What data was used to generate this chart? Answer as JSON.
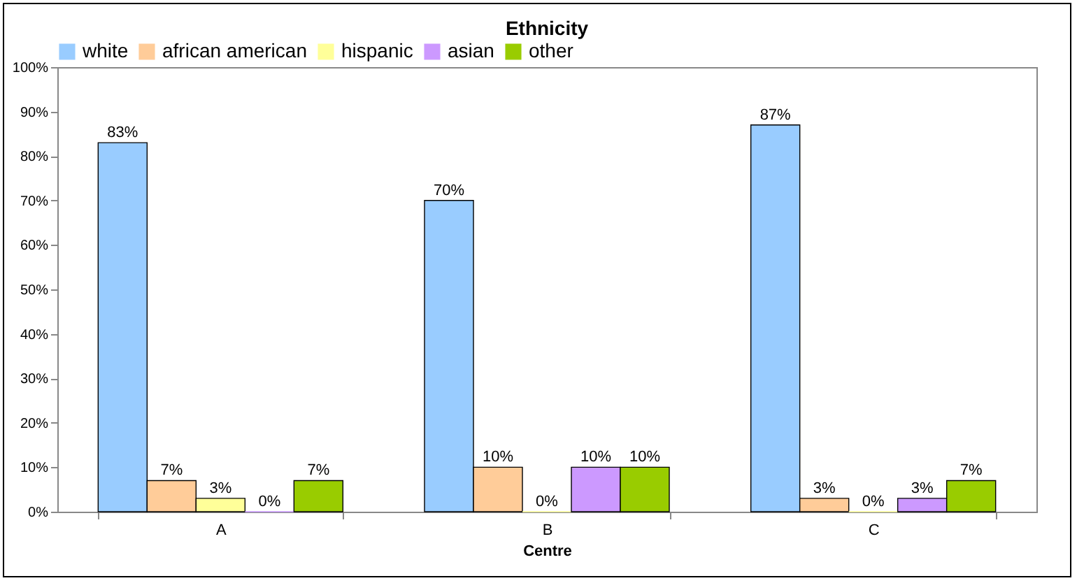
{
  "chart_data": {
    "type": "bar",
    "title": "Ethnicity",
    "xlabel": "Centre",
    "categories": [
      "A",
      "B",
      "C"
    ],
    "series": [
      {
        "name": "white",
        "color": "#99ccff",
        "values": [
          83,
          70,
          87
        ],
        "value_labels": [
          "83%",
          "70%",
          "87%"
        ]
      },
      {
        "name": "african american",
        "color": "#ffcc99",
        "values": [
          7,
          10,
          3
        ],
        "value_labels": [
          "7%",
          "10%",
          "3%"
        ]
      },
      {
        "name": "hispanic",
        "color": "#ffff99",
        "values": [
          3,
          0,
          0
        ],
        "value_labels": [
          "3%",
          "0%",
          "0%"
        ]
      },
      {
        "name": "asian",
        "color": "#cc99ff",
        "values": [
          0,
          10,
          3
        ],
        "value_labels": [
          "0%",
          "10%",
          "3%"
        ]
      },
      {
        "name": "other",
        "color": "#99cc00",
        "values": [
          7,
          10,
          7
        ],
        "value_labels": [
          "7%",
          "10%",
          "7%"
        ]
      }
    ],
    "ylim": [
      0,
      100
    ],
    "yticks": [
      {
        "value": 0,
        "label": "0%"
      },
      {
        "value": 10,
        "label": "10%"
      },
      {
        "value": 20,
        "label": "20%"
      },
      {
        "value": 30,
        "label": "30%"
      },
      {
        "value": 40,
        "label": "40%"
      },
      {
        "value": 50,
        "label": "50%"
      },
      {
        "value": 60,
        "label": "60%"
      },
      {
        "value": 70,
        "label": "70%"
      },
      {
        "value": 80,
        "label": "80%"
      },
      {
        "value": 90,
        "label": "90%"
      },
      {
        "value": 100,
        "label": "100%"
      }
    ],
    "grid": false,
    "legend": "top"
  }
}
